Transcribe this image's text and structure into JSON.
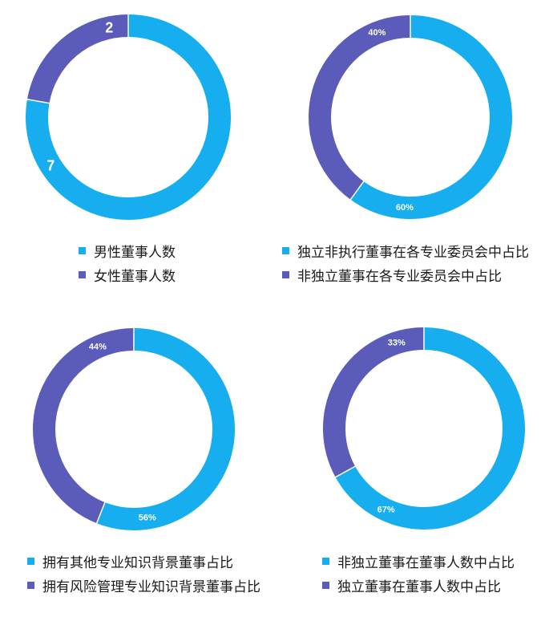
{
  "colors": {
    "primary": "#16AEEE",
    "secondary": "#5B5CB9"
  },
  "chart_data": [
    {
      "type": "pie",
      "variant": "donut",
      "slices": [
        {
          "name": "男性董事人数",
          "value": 7,
          "label": "7",
          "color": "#16AEEE"
        },
        {
          "name": "女性董事人数",
          "value": 2,
          "label": "2",
          "color": "#5B5CB9"
        }
      ],
      "legend_position": "bottom"
    },
    {
      "type": "pie",
      "variant": "donut",
      "slices": [
        {
          "name": "独立非执行董事在各专业委员会中占比",
          "value": 60,
          "label": "60%",
          "color": "#16AEEE"
        },
        {
          "name": "非独立董事在各专业委员会中占比",
          "value": 40,
          "label": "40%",
          "color": "#5B5CB9"
        }
      ],
      "legend_position": "bottom"
    },
    {
      "type": "pie",
      "variant": "donut",
      "slices": [
        {
          "name": "拥有其他专业知识背景董事占比",
          "value": 56,
          "label": "56%",
          "color": "#16AEEE"
        },
        {
          "name": "拥有风险管理专业知识背景董事占比",
          "value": 44,
          "label": "44%",
          "color": "#5B5CB9"
        }
      ],
      "legend_position": "bottom"
    },
    {
      "type": "pie",
      "variant": "donut",
      "slices": [
        {
          "name": "非独立董事在董事人数中占比",
          "value": 67,
          "label": "67%",
          "color": "#16AEEE"
        },
        {
          "name": "独立董事在董事人数中占比",
          "value": 33,
          "label": "33%",
          "color": "#5B5CB9"
        }
      ],
      "legend_position": "bottom"
    }
  ]
}
